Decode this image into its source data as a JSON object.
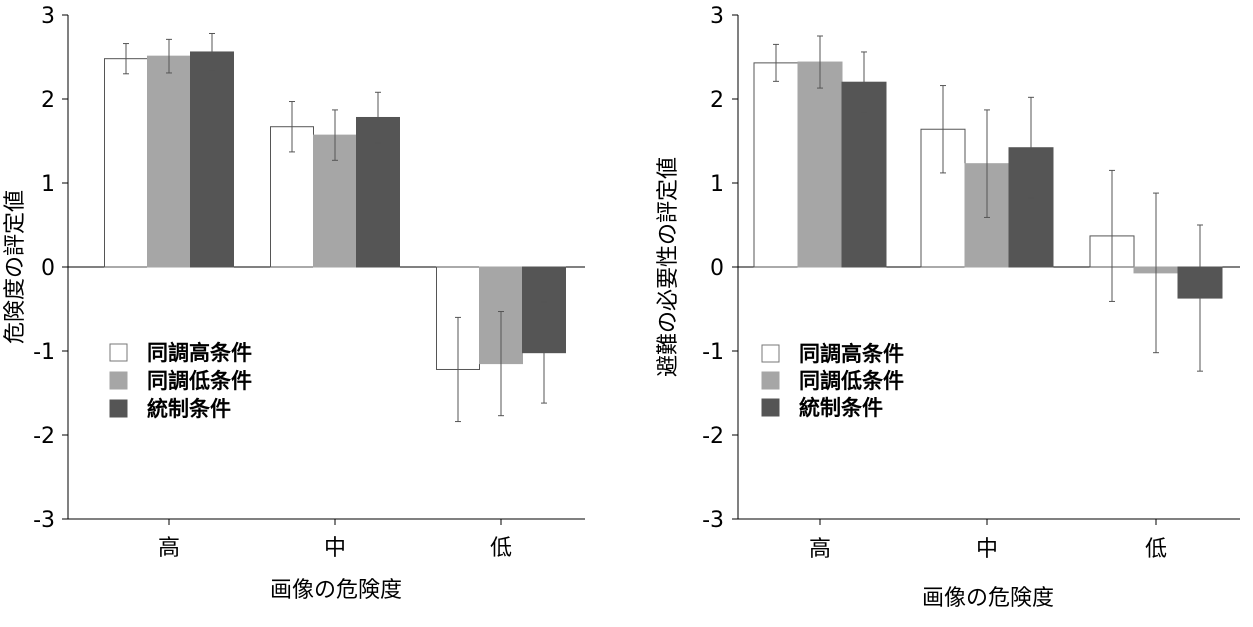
{
  "chart_data": [
    {
      "type": "bar",
      "title": "",
      "xlabel": "画像の危険度",
      "ylabel": "危険度の評定値",
      "ylim": [
        -3,
        3
      ],
      "yticks": [
        "-3",
        "-2",
        "-1",
        "0",
        "1",
        "2",
        "3"
      ],
      "categories": [
        "高",
        "中",
        "低"
      ],
      "legend_position": "lower-left",
      "series": [
        {
          "name": "同調高条件",
          "color": "#ffffff",
          "values": [
            2.48,
            1.67,
            -1.22
          ],
          "errors": [
            0.18,
            0.3,
            0.62
          ]
        },
        {
          "name": "同調低条件",
          "color": "#a6a6a6",
          "values": [
            2.51,
            1.57,
            -1.15
          ],
          "errors": [
            0.2,
            0.3,
            0.62
          ]
        },
        {
          "name": "統制条件",
          "color": "#555555",
          "values": [
            2.56,
            1.78,
            -1.02
          ],
          "errors": [
            0.22,
            0.3,
            0.6
          ]
        }
      ]
    },
    {
      "type": "bar",
      "title": "",
      "xlabel": "画像の危険度",
      "ylabel": "避難の必要性の評定値",
      "ylim": [
        -3,
        3
      ],
      "yticks": [
        "-3",
        "-2",
        "-1",
        "0",
        "1",
        "2",
        "3"
      ],
      "categories": [
        "高",
        "中",
        "低"
      ],
      "legend_position": "lower-left",
      "series": [
        {
          "name": "同調高条件",
          "color": "#ffffff",
          "values": [
            2.43,
            1.64,
            0.37
          ],
          "errors": [
            0.22,
            0.52,
            0.78
          ]
        },
        {
          "name": "同調低条件",
          "color": "#a6a6a6",
          "values": [
            2.44,
            1.23,
            -0.07
          ],
          "errors": [
            0.31,
            0.64,
            0.95
          ]
        },
        {
          "name": "統制条件",
          "color": "#555555",
          "values": [
            2.2,
            1.42,
            -0.37
          ],
          "errors": [
            0.36,
            0.6,
            0.87
          ]
        }
      ]
    }
  ]
}
